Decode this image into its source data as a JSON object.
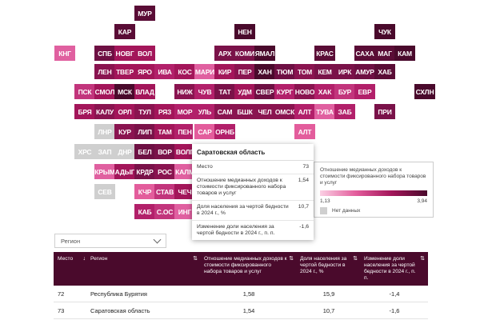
{
  "tiles": [
    {
      "id": "МУР",
      "bg": "#5a0d36"
    },
    {
      "id": "КАР",
      "bg": "#5a0d36"
    },
    {
      "id": "НЕН",
      "bg": "#4a0a2c"
    },
    {
      "id": "ЧУК",
      "bg": "#4a0a2c"
    },
    {
      "id": "КНГ",
      "bg": "#e060a0"
    },
    {
      "id": "СПБ",
      "bg": "#6e1043"
    },
    {
      "id": "НОВГ",
      "bg": "#a3165a"
    },
    {
      "id": "ВОЛ",
      "bg": "#a3165a"
    },
    {
      "id": "АРХ",
      "bg": "#7a1249"
    },
    {
      "id": "КОМИ",
      "bg": "#7a1249"
    },
    {
      "id": "ЯМАЛ",
      "bg": "#4a0a2c"
    },
    {
      "id": "КРАС",
      "bg": "#5a0d36"
    },
    {
      "id": "САХА",
      "bg": "#5a0d36"
    },
    {
      "id": "МАГ",
      "bg": "#5a0d36"
    },
    {
      "id": "КАМ",
      "bg": "#4a0a2c"
    },
    {
      "id": "ЛЕН",
      "bg": "#8a1450"
    },
    {
      "id": "ТВЕР",
      "bg": "#a3165a"
    },
    {
      "id": "ЯРО",
      "bg": "#a3165a"
    },
    {
      "id": "ИВА",
      "bg": "#b2206a"
    },
    {
      "id": "КОС",
      "bg": "#a3165a"
    },
    {
      "id": "МАРИ",
      "bg": "#e060a0"
    },
    {
      "id": "КИР",
      "bg": "#a3165a"
    },
    {
      "id": "ПЕР",
      "bg": "#8a1450"
    },
    {
      "id": "ХАН",
      "bg": "#4a0a2c"
    },
    {
      "id": "ТЮМ",
      "bg": "#6e1043"
    },
    {
      "id": "ТОМ",
      "bg": "#8a1450"
    },
    {
      "id": "КЕМ",
      "bg": "#7a1249"
    },
    {
      "id": "ИРК",
      "bg": "#7a1249"
    },
    {
      "id": "АМУР",
      "bg": "#6e1043"
    },
    {
      "id": "ХАБ",
      "bg": "#5a0d36"
    },
    {
      "id": "ПСК",
      "bg": "#c2357c"
    },
    {
      "id": "СМОЛ",
      "bg": "#a3165a"
    },
    {
      "id": "МСК",
      "bg": "#4a0a2c"
    },
    {
      "id": "ВЛАД",
      "bg": "#a3165a"
    },
    {
      "id": "НИЖ",
      "bg": "#8a1450"
    },
    {
      "id": "ЧУВ",
      "bg": "#b2206a"
    },
    {
      "id": "ТАТ",
      "bg": "#7a1249"
    },
    {
      "id": "УДМ",
      "bg": "#a3165a"
    },
    {
      "id": "СВЕР",
      "bg": "#6e1043"
    },
    {
      "id": "КУРГ",
      "bg": "#b2206a"
    },
    {
      "id": "НОВО",
      "bg": "#8a1450"
    },
    {
      "id": "ХАК",
      "bg": "#b2206a"
    },
    {
      "id": "БУР",
      "bg": "#c2357c"
    },
    {
      "id": "ЕВР",
      "bg": "#b2206a"
    },
    {
      "id": "СХЛН",
      "bg": "#4a0a2c"
    },
    {
      "id": "БРЯ",
      "bg": "#a3165a"
    },
    {
      "id": "КАЛУ",
      "bg": "#8a1450"
    },
    {
      "id": "ОРЛ",
      "bg": "#a3165a"
    },
    {
      "id": "ТУЛ",
      "bg": "#8a1450"
    },
    {
      "id": "РЯЗ",
      "bg": "#a3165a"
    },
    {
      "id": "МОР",
      "bg": "#b2206a"
    },
    {
      "id": "УЛЬ",
      "bg": "#b2206a"
    },
    {
      "id": "САМ",
      "bg": "#8a1450"
    },
    {
      "id": "БШК",
      "bg": "#8a1450"
    },
    {
      "id": "ЧЕЛ",
      "bg": "#8a1450"
    },
    {
      "id": "ОМСК",
      "bg": "#8a1450"
    },
    {
      "id": "АЛТ",
      "bg": "#b2206a"
    },
    {
      "id": "ТУВА",
      "bg": "#e060a0"
    },
    {
      "id": "ЗАБ",
      "bg": "#b2206a"
    },
    {
      "id": "ПРИ",
      "bg": "#7a1249"
    },
    {
      "id": "ЛНР",
      "bg": "#cfcfcf"
    },
    {
      "id": "КУР",
      "bg": "#8a1450"
    },
    {
      "id": "ЛИП",
      "bg": "#7a1249"
    },
    {
      "id": "ТАМ",
      "bg": "#a3165a"
    },
    {
      "id": "ПЕН",
      "bg": "#b2206a"
    },
    {
      "id": "САР",
      "bg": "#e35d9c"
    },
    {
      "id": "ОРНБ",
      "bg": "#b2206a"
    },
    {
      "id": "АЛТ2",
      "label": "АЛТ",
      "bg": "#e35d9c"
    },
    {
      "id": "ХРС",
      "bg": "#cfcfcf"
    },
    {
      "id": "ЗАП",
      "bg": "#cfcfcf"
    },
    {
      "id": "ДНР",
      "bg": "#cfcfcf"
    },
    {
      "id": "БЕЛ",
      "bg": "#6e1043"
    },
    {
      "id": "ВОР",
      "bg": "#7a1249"
    },
    {
      "id": "ВОЛГ",
      "bg": "#a3165a"
    },
    {
      "id": "КРЫМ",
      "bg": "#e060a0"
    },
    {
      "id": "АДЫГ",
      "bg": "#a3165a"
    },
    {
      "id": "КРДР",
      "bg": "#7a1249"
    },
    {
      "id": "РОС",
      "bg": "#8a1450"
    },
    {
      "id": "КАЛМ",
      "bg": "#e060a0"
    },
    {
      "id": "СЕВ",
      "bg": "#cfcfcf"
    },
    {
      "id": "КЧР",
      "bg": "#e35d9c"
    },
    {
      "id": "СТАВ",
      "bg": "#c2357c"
    },
    {
      "id": "ЧЕЧ",
      "bg": "#a3165a"
    },
    {
      "id": "КАБ",
      "bg": "#b2206a"
    },
    {
      "id": "С.ОС",
      "bg": "#c2357c"
    },
    {
      "id": "ИНГ",
      "bg": "#e060a0"
    }
  ],
  "tooltip": {
    "title": "Саратовская область",
    "rows": [
      {
        "label": "Место",
        "value": "73"
      },
      {
        "label": "Отношение медианных доходов к стоимости фиксированного набора товаров и услуг",
        "value": "1,54"
      },
      {
        "label": "Доля населения за чертой бедности в 2024 г., %",
        "value": "10,7"
      },
      {
        "label": "Изменение доли населения за чертой бедности в 2024 г., п. п.",
        "value": "-1,6"
      }
    ]
  },
  "legend": {
    "title": "Отношение медианных доходов к стоимости фиксированного набора товаров и услуг",
    "min": "1,13",
    "max": "3,94",
    "nodata": "Нет данных"
  },
  "filter": {
    "label": "Регион"
  },
  "table": {
    "headers": {
      "place": "Место",
      "region": "Регион",
      "ratio": "Отношение медианных доходов к стоимости фиксированного набора товаров и услуг",
      "share": "Доля населения за чертой бедности в 2024 г., %",
      "change": "Изменение доли населения за чертой бедности в 2024 г., п. п."
    },
    "rows": [
      {
        "place": "72",
        "region": "Республика Бурятия",
        "ratio": "1,58",
        "share": "15,9",
        "change": "-1,4"
      },
      {
        "place": "73",
        "region": "Саратовская область",
        "ratio": "1,54",
        "share": "10,7",
        "change": "-1,6"
      }
    ]
  }
}
